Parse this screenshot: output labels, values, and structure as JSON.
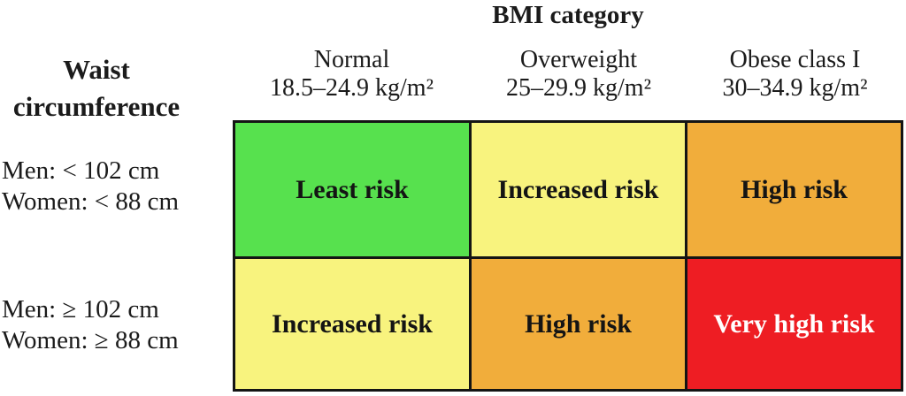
{
  "title": "BMI category",
  "row_axis": {
    "line1": "Waist",
    "line2": "circumference"
  },
  "columns": [
    {
      "label": "Normal",
      "range": "18.5–24.9 kg/m²"
    },
    {
      "label": "Overweight",
      "range": "25–29.9 kg/m²"
    },
    {
      "label": "Obese class I",
      "range": "30–34.9 kg/m²"
    }
  ],
  "rows": [
    {
      "label_line1": "Men: < 102 cm",
      "label_line2": "Women: < 88 cm",
      "cells": [
        {
          "text": "Least risk",
          "bg": "#57e14e",
          "fg": "#141414"
        },
        {
          "text": "Increased risk",
          "bg": "#f8f37e",
          "fg": "#141414"
        },
        {
          "text": "High risk",
          "bg": "#f1ad3b",
          "fg": "#141414"
        }
      ]
    },
    {
      "label_line1": "Men: ≥ 102 cm",
      "label_line2": "Women: ≥ 88 cm",
      "cells": [
        {
          "text": "Increased risk",
          "bg": "#f8f37e",
          "fg": "#141414"
        },
        {
          "text": "High risk",
          "bg": "#f1ad3b",
          "fg": "#141414"
        },
        {
          "text": "Very high risk",
          "bg": "#ee1d23",
          "fg": "#ffffff"
        }
      ]
    }
  ],
  "colors": {
    "least_risk": "#57e14e",
    "increased_risk": "#f8f37e",
    "high_risk": "#f1ad3b",
    "very_high_risk": "#ee1d23",
    "grid_border": "#141414",
    "background": "#ffffff"
  },
  "chart_data": {
    "type": "table",
    "title": "BMI category",
    "row_header": "Waist circumference",
    "columns": [
      "Normal 18.5–24.9 kg/m²",
      "Overweight 25–29.9 kg/m²",
      "Obese class I 30–34.9 kg/m²"
    ],
    "rows": [
      "Men: < 102 cm / Women: < 88 cm",
      "Men: ≥ 102 cm / Women: ≥ 88 cm"
    ],
    "values": [
      [
        "Least risk",
        "Increased risk",
        "High risk"
      ],
      [
        "Increased risk",
        "High risk",
        "Very high risk"
      ]
    ],
    "cell_colors": [
      [
        "#57e14e",
        "#f8f37e",
        "#f1ad3b"
      ],
      [
        "#f8f37e",
        "#f1ad3b",
        "#ee1d23"
      ]
    ],
    "grid": "on",
    "legend_position": "none"
  }
}
